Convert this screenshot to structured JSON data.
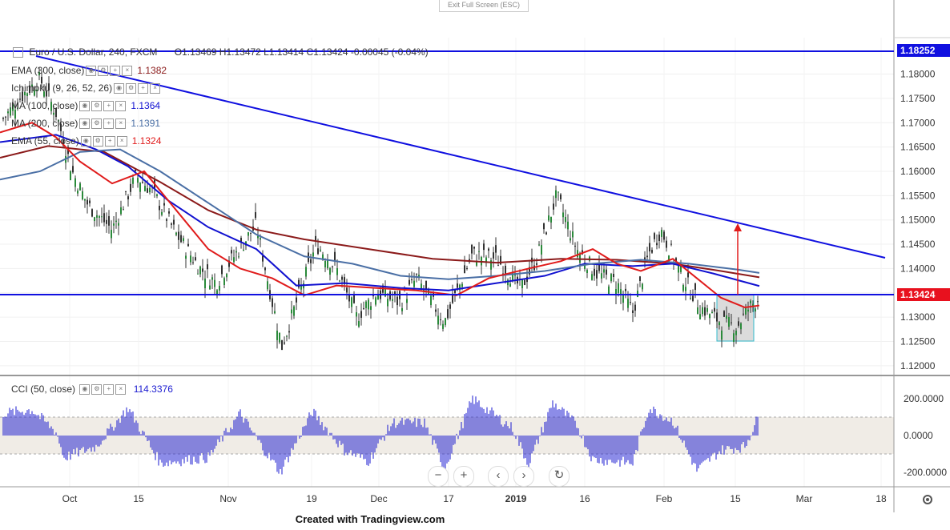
{
  "window": {
    "exit_fullscreen_label": "Exit Full Screen (ESC)"
  },
  "header": {
    "symbol": "Euro / U.S. Dollar, 240, FXCM",
    "ohlc": "O1.13469  H1.13472  L1.13414  C1.13424  -0.00045 (-0.04%)"
  },
  "indicators": [
    {
      "label": "EMA (300, close)",
      "value": "1.1382",
      "color": "#8b1a1a"
    },
    {
      "label": "Ichimoku (9, 26, 52, 26)",
      "value": "",
      "color": "#2e7dd7"
    },
    {
      "label": "MA (100, close)",
      "value": "1.1364",
      "color": "#1010d0"
    },
    {
      "label": "MA (200, close)",
      "value": "1.1391",
      "color": "#4a6fa5"
    },
    {
      "label": "EMA (55, close)",
      "value": "1.1324",
      "color": "#e01b1b"
    }
  ],
  "cci": {
    "label": "CCI (50, close)",
    "value": "114.3376",
    "color": "#1a1ad0",
    "ticks": [
      "200.0000",
      "0.0000",
      "-200.0000"
    ]
  },
  "price_tags": {
    "top": "1.18252",
    "current": "1.13424"
  },
  "footer": {
    "text": "Created with Tradingview.com"
  },
  "nav_icons": [
    "minus-icon",
    "plus-icon",
    "chevron-left-icon",
    "chevron-right-icon",
    "reset-icon"
  ],
  "colors": {
    "trendline": "#1010e0",
    "hline": "#1010e0",
    "price_tag_bg": "#1010e0",
    "current_tag_bg": "#e8111e"
  },
  "chart_data": {
    "type": "candlestick",
    "x_tick_labels": [
      "Oct",
      "15",
      "Nov",
      "19",
      "Dec",
      "17",
      "2019",
      "16",
      "Feb",
      "15",
      "Mar",
      "18"
    ],
    "y_tick_labels": [
      "1.18000",
      "1.17500",
      "1.17000",
      "1.16500",
      "1.16000",
      "1.15500",
      "1.15000",
      "1.14500",
      "1.14000",
      "1.13500",
      "1.13000",
      "1.12500",
      "1.12000"
    ],
    "ylim": [
      1.118,
      1.1875
    ],
    "horizontal_lines": [
      1.18252,
      1.13424
    ],
    "series": [
      {
        "name": "EMA (300, close)",
        "points": [
          [
            0,
            1.1628
          ],
          [
            60,
            1.1652
          ],
          [
            130,
            1.164
          ],
          [
            200,
            1.1578
          ],
          [
            260,
            1.152
          ],
          [
            320,
            1.148
          ],
          [
            380,
            1.146
          ],
          [
            460,
            1.144
          ],
          [
            540,
            1.142
          ],
          [
            620,
            1.1412
          ],
          [
            700,
            1.142
          ],
          [
            770,
            1.1418
          ],
          [
            840,
            1.141
          ],
          [
            900,
            1.1395
          ],
          [
            948,
            1.1382
          ]
        ]
      },
      {
        "name": "MA (100, close)",
        "points": [
          [
            0,
            1.166
          ],
          [
            70,
            1.1675
          ],
          [
            120,
            1.1645
          ],
          [
            160,
            1.161
          ],
          [
            210,
            1.154
          ],
          [
            260,
            1.1485
          ],
          [
            320,
            1.144
          ],
          [
            370,
            1.1365
          ],
          [
            430,
            1.137
          ],
          [
            500,
            1.136
          ],
          [
            560,
            1.1355
          ],
          [
            620,
            1.137
          ],
          [
            680,
            1.1385
          ],
          [
            730,
            1.141
          ],
          [
            790,
            1.1405
          ],
          [
            840,
            1.141
          ],
          [
            890,
            1.139
          ],
          [
            948,
            1.1364
          ]
        ]
      },
      {
        "name": "MA (200, close)",
        "points": [
          [
            0,
            1.1583
          ],
          [
            50,
            1.16
          ],
          [
            100,
            1.164
          ],
          [
            150,
            1.1645
          ],
          [
            200,
            1.16
          ],
          [
            260,
            1.1535
          ],
          [
            320,
            1.147
          ],
          [
            380,
            1.1425
          ],
          [
            440,
            1.141
          ],
          [
            500,
            1.1385
          ],
          [
            560,
            1.1378
          ],
          [
            620,
            1.1385
          ],
          [
            680,
            1.1395
          ],
          [
            740,
            1.141
          ],
          [
            800,
            1.1418
          ],
          [
            860,
            1.141
          ],
          [
            920,
            1.1398
          ],
          [
            948,
            1.1391
          ]
        ]
      },
      {
        "name": "EMA (55, close)",
        "points": [
          [
            0,
            1.168
          ],
          [
            40,
            1.17
          ],
          [
            70,
            1.167
          ],
          [
            100,
            1.162
          ],
          [
            140,
            1.1575
          ],
          [
            180,
            1.16
          ],
          [
            220,
            1.152
          ],
          [
            260,
            1.144
          ],
          [
            300,
            1.14
          ],
          [
            340,
            1.138
          ],
          [
            380,
            1.1345
          ],
          [
            420,
            1.1365
          ],
          [
            470,
            1.136
          ],
          [
            520,
            1.1355
          ],
          [
            570,
            1.1345
          ],
          [
            610,
            1.138
          ],
          [
            660,
            1.14
          ],
          [
            700,
            1.1415
          ],
          [
            740,
            1.144
          ],
          [
            770,
            1.141
          ],
          [
            800,
            1.1395
          ],
          [
            840,
            1.142
          ],
          [
            870,
            1.138
          ],
          [
            900,
            1.134
          ],
          [
            930,
            1.132
          ],
          [
            948,
            1.1324
          ]
        ]
      },
      {
        "name": "CCI (50, close)",
        "points": [
          [
            0,
            120
          ],
          [
            40,
            140
          ],
          [
            70,
            20
          ],
          [
            80,
            -120
          ],
          [
            120,
            -60
          ],
          [
            160,
            150
          ],
          [
            200,
            -150
          ],
          [
            260,
            -120
          ],
          [
            300,
            120
          ],
          [
            330,
            -80
          ],
          [
            350,
            -200
          ],
          [
            390,
            130
          ],
          [
            430,
            -80
          ],
          [
            460,
            -140
          ],
          [
            490,
            70
          ],
          [
            530,
            70
          ],
          [
            555,
            -180
          ],
          [
            590,
            200
          ],
          [
            640,
            40
          ],
          [
            660,
            -160
          ],
          [
            690,
            180
          ],
          [
            720,
            60
          ],
          [
            740,
            -130
          ],
          [
            790,
            -150
          ],
          [
            810,
            150
          ],
          [
            840,
            80
          ],
          [
            870,
            -190
          ],
          [
            900,
            -80
          ],
          [
            930,
            -60
          ],
          [
            948,
            114
          ]
        ]
      }
    ]
  }
}
